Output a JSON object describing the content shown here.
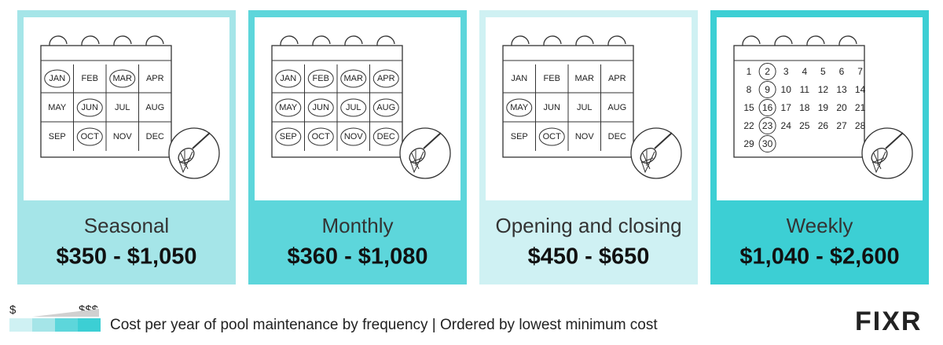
{
  "cards": [
    {
      "label": "Seasonal",
      "price": "$350 - $1,050",
      "color": "#a5e5e8",
      "calendar": "months",
      "circled": [
        0,
        2,
        5,
        9
      ]
    },
    {
      "label": "Monthly",
      "price": "$360 - $1,080",
      "color": "#5dd6db",
      "calendar": "months",
      "circled": [
        0,
        1,
        2,
        3,
        4,
        5,
        6,
        7,
        8,
        9,
        10,
        11
      ]
    },
    {
      "label": "Opening and closing",
      "price": "$450 - $650",
      "color": "#cff1f3",
      "calendar": "months",
      "circled": [
        4,
        9
      ]
    },
    {
      "label": "Weekly",
      "price": "$1,040 - $2,600",
      "color": "#3ccfd4",
      "calendar": "days",
      "circled": [
        1,
        8,
        15,
        22,
        29
      ]
    }
  ],
  "months": [
    "JAN",
    "FEB",
    "MAR",
    "APR",
    "MAY",
    "JUN",
    "JUL",
    "AUG",
    "SEP",
    "OCT",
    "NOV",
    "DEC"
  ],
  "days": [
    1,
    2,
    3,
    4,
    5,
    6,
    7,
    8,
    9,
    10,
    11,
    12,
    13,
    14,
    15,
    16,
    17,
    18,
    19,
    20,
    21,
    22,
    23,
    24,
    25,
    26,
    27,
    28,
    29,
    30
  ],
  "legend": {
    "low": "$",
    "high": "$$$",
    "caption": "Cost per year of pool maintenance by frequency | Ordered by lowest minimum cost"
  },
  "logo": "FIXR"
}
